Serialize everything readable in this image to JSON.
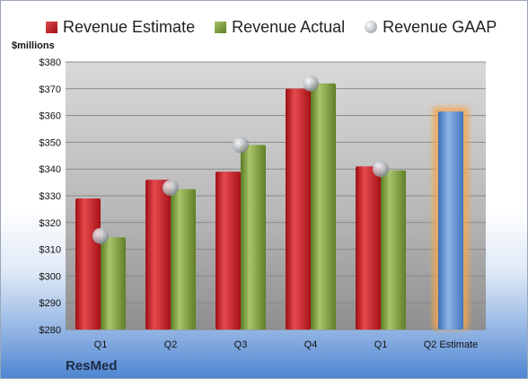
{
  "chart_data": {
    "type": "bar",
    "ylabel": "$millions",
    "ylim": [
      280,
      380
    ],
    "yticks": [
      280,
      290,
      300,
      310,
      320,
      330,
      340,
      350,
      360,
      370,
      380
    ],
    "ytick_prefix": "$",
    "grid": true,
    "legend_position": "top",
    "categories": [
      "Q1",
      "Q2",
      "Q3",
      "Q4",
      "Q1",
      "Q2 Estimate"
    ],
    "series": [
      {
        "name": "Revenue Estimate",
        "kind": "bar",
        "color": "#c8161d",
        "values": [
          329,
          336,
          339,
          370,
          341,
          null
        ]
      },
      {
        "name": "Revenue Actual",
        "kind": "bar",
        "color": "#7a9a3a",
        "values": [
          314.5,
          332.5,
          349,
          372,
          339.5,
          null
        ]
      },
      {
        "name": "Revenue GAAP",
        "kind": "marker",
        "color": "#b0b4bb",
        "values": [
          315,
          333,
          349,
          372,
          340,
          null
        ]
      },
      {
        "name": "Revenue Estimate",
        "kind": "bar-highlight",
        "color": "#5b8fd3",
        "values": [
          null,
          null,
          null,
          null,
          null,
          361.5
        ]
      }
    ]
  },
  "legend": [
    {
      "label": "Revenue Estimate",
      "swatch": "red"
    },
    {
      "label": "Revenue Actual",
      "swatch": "green"
    },
    {
      "label": "Revenue GAAP",
      "swatch": "dot"
    }
  ],
  "brand": "ResMed"
}
